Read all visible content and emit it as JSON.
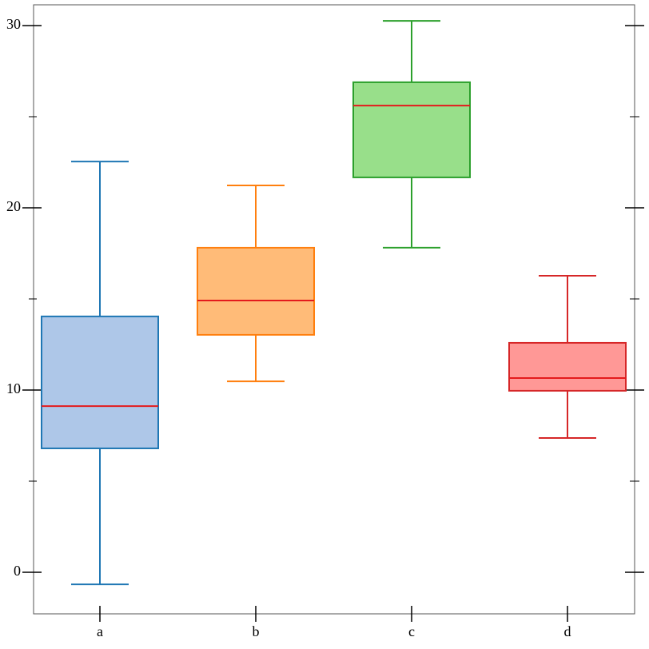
{
  "chart_data": {
    "type": "box",
    "categories": [
      "a",
      "b",
      "c",
      "d"
    ],
    "boxes": [
      {
        "low": -0.66,
        "q1": 6.8,
        "median": 9.12,
        "q3": 14.04,
        "high": 22.54
      },
      {
        "low": 10.48,
        "q1": 13.03,
        "median": 14.91,
        "q3": 17.81,
        "high": 21.23
      },
      {
        "low": 17.81,
        "q1": 21.67,
        "median": 25.61,
        "q3": 26.89,
        "high": 30.26
      },
      {
        "low": 7.37,
        "q1": 9.96,
        "median": 10.66,
        "q3": 12.59,
        "high": 16.27
      }
    ],
    "colors": [
      "#1f77b4",
      "#ff7f0e",
      "#2ca02c",
      "#d62728"
    ],
    "fills": [
      "#aec7e8",
      "#ffbb78",
      "#98df8a",
      "#ff9896"
    ],
    "median_color": "#e41a1c",
    "ylim": [
      -2.28,
      31.14
    ],
    "yticks": [
      0,
      10,
      20,
      30
    ],
    "minor_yticks": [
      5,
      15,
      25
    ]
  }
}
